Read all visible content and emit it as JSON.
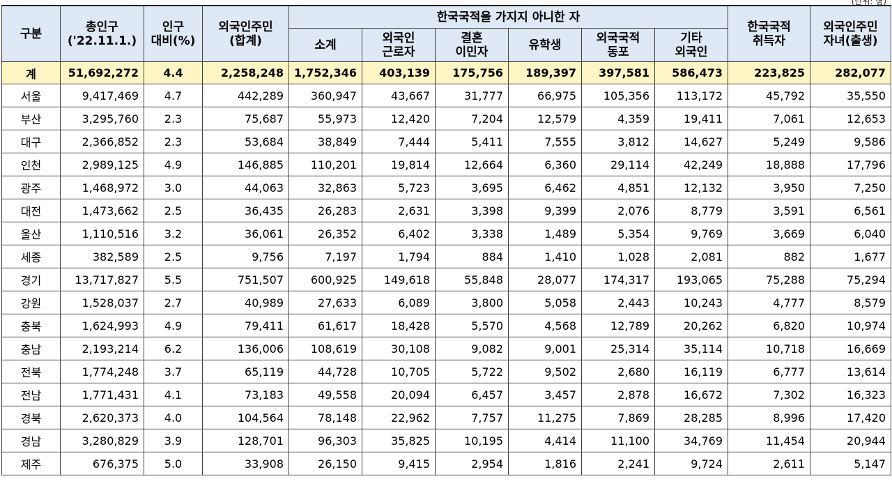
{
  "unit_note": "(단위: 명)",
  "headers": {
    "region": "구분",
    "total_pop_l1": "총인구",
    "total_pop_l2": "('22.11.1.)",
    "ratio_l1": "인구",
    "ratio_l2": "대비(%)",
    "foreign_total_l1": "외국인주민",
    "foreign_total_l2": "(합계)",
    "non_citizen_group": "한국국적을 가지지 아니한 자",
    "subtotal": "소계",
    "workers_l1": "외국인",
    "workers_l2": "근로자",
    "marriage_l1": "결혼",
    "marriage_l2": "이민자",
    "students": "유학생",
    "korean_diaspora_l1": "외국국적",
    "korean_diaspora_l2": "동포",
    "other_l1": "기타",
    "other_l2": "외국인",
    "naturalized_l1": "한국국적",
    "naturalized_l2": "취득자",
    "children_l1": "외국인주민",
    "children_l2": "자녀(출생)"
  },
  "total_row": [
    "계",
    "51,692,272",
    "4.4",
    "2,258,248",
    "1,752,346",
    "403,139",
    "175,756",
    "189,397",
    "397,581",
    "586,473",
    "223,825",
    "282,077"
  ],
  "rows": [
    [
      "서울",
      "9,417,469",
      "4.7",
      "442,289",
      "360,947",
      "43,667",
      "31,777",
      "66,975",
      "105,356",
      "113,172",
      "45,792",
      "35,550"
    ],
    [
      "부산",
      "3,295,760",
      "2.3",
      "75,687",
      "55,973",
      "12,420",
      "7,204",
      "12,579",
      "4,359",
      "19,411",
      "7,061",
      "12,653"
    ],
    [
      "대구",
      "2,366,852",
      "2.3",
      "53,684",
      "38,849",
      "7,444",
      "5,411",
      "7,555",
      "3,812",
      "14,627",
      "5,249",
      "9,586"
    ],
    [
      "인천",
      "2,989,125",
      "4.9",
      "146,885",
      "110,201",
      "19,814",
      "12,664",
      "6,360",
      "29,114",
      "42,249",
      "18,888",
      "17,796"
    ],
    [
      "광주",
      "1,468,972",
      "3.0",
      "44,063",
      "32,863",
      "5,723",
      "3,695",
      "6,462",
      "4,851",
      "12,132",
      "3,950",
      "7,250"
    ],
    [
      "대전",
      "1,473,662",
      "2.5",
      "36,435",
      "26,283",
      "2,631",
      "3,398",
      "9,399",
      "2,076",
      "8,779",
      "3,591",
      "6,561"
    ],
    [
      "울산",
      "1,110,516",
      "3.2",
      "36,061",
      "26,352",
      "6,402",
      "3,338",
      "1,489",
      "5,354",
      "9,769",
      "3,669",
      "6,040"
    ],
    [
      "세종",
      "382,589",
      "2.5",
      "9,756",
      "7,197",
      "1,794",
      "884",
      "1,410",
      "1,028",
      "2,081",
      "882",
      "1,677"
    ],
    [
      "경기",
      "13,717,827",
      "5.5",
      "751,507",
      "600,925",
      "149,618",
      "55,848",
      "28,077",
      "174,317",
      "193,065",
      "75,288",
      "75,294"
    ],
    [
      "강원",
      "1,528,037",
      "2.7",
      "40,989",
      "27,633",
      "6,089",
      "3,800",
      "5,058",
      "2,443",
      "10,243",
      "4,777",
      "8,579"
    ],
    [
      "충북",
      "1,624,993",
      "4.9",
      "79,411",
      "61,617",
      "18,428",
      "5,570",
      "4,568",
      "12,789",
      "20,262",
      "6,820",
      "10,974"
    ],
    [
      "충남",
      "2,193,214",
      "6.2",
      "136,006",
      "108,619",
      "30,108",
      "9,082",
      "9,001",
      "25,314",
      "35,114",
      "10,718",
      "16,669"
    ],
    [
      "전북",
      "1,774,248",
      "3.7",
      "65,119",
      "44,728",
      "10,705",
      "5,722",
      "9,502",
      "2,680",
      "16,119",
      "6,777",
      "13,614"
    ],
    [
      "전남",
      "1,771,431",
      "4.1",
      "73,183",
      "49,558",
      "20,094",
      "6,457",
      "3,457",
      "2,878",
      "16,672",
      "7,302",
      "16,323"
    ],
    [
      "경북",
      "2,620,373",
      "4.0",
      "104,564",
      "78,148",
      "22,962",
      "7,757",
      "11,275",
      "7,869",
      "28,285",
      "8,996",
      "17,420"
    ],
    [
      "경남",
      "3,280,829",
      "3.9",
      "128,701",
      "96,303",
      "35,825",
      "10,195",
      "4,414",
      "11,100",
      "34,769",
      "11,454",
      "20,944"
    ],
    [
      "제주",
      "676,375",
      "5.0",
      "33,908",
      "26,150",
      "9,415",
      "2,954",
      "1,816",
      "2,241",
      "9,724",
      "2,611",
      "5,147"
    ]
  ]
}
